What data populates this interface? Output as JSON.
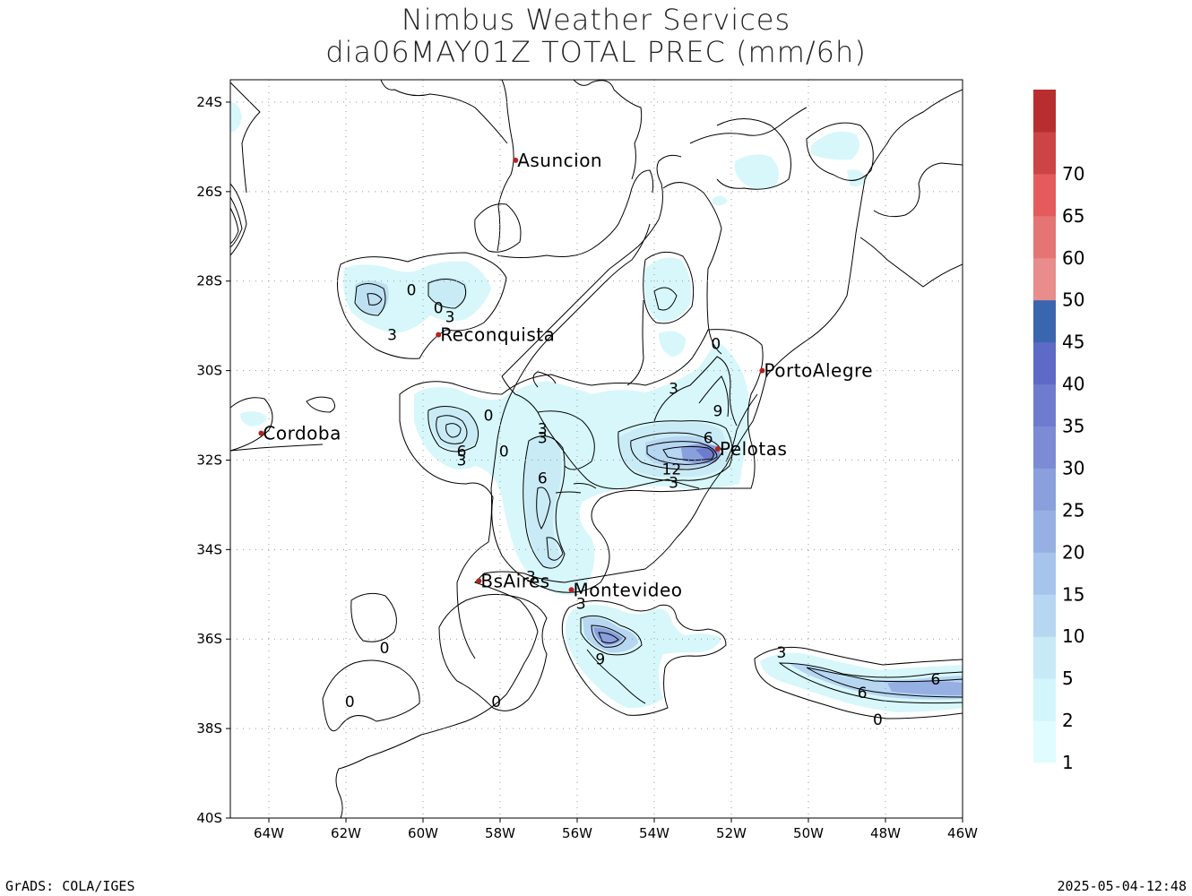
{
  "title": {
    "line1": "Nimbus Weather Services",
    "line2": "dia06MAY01Z TOTAL PREC (mm/6h)"
  },
  "footer": {
    "left": "GrADS: COLA/IGES",
    "right": "2025-05-04-12:48"
  },
  "axes": {
    "lon_range": [
      -65,
      -46
    ],
    "lat_range": [
      -40,
      -23.5
    ],
    "x_ticks": [
      {
        "v": -64,
        "label": "64W"
      },
      {
        "v": -62,
        "label": "62W"
      },
      {
        "v": -60,
        "label": "60W"
      },
      {
        "v": -58,
        "label": "58W"
      },
      {
        "v": -56,
        "label": "56W"
      },
      {
        "v": -54,
        "label": "54W"
      },
      {
        "v": -52,
        "label": "52W"
      },
      {
        "v": -50,
        "label": "50W"
      },
      {
        "v": -48,
        "label": "48W"
      },
      {
        "v": -46,
        "label": "46W"
      }
    ],
    "y_ticks": [
      {
        "v": -24,
        "label": "24S"
      },
      {
        "v": -26,
        "label": "26S"
      },
      {
        "v": -28,
        "label": "28S"
      },
      {
        "v": -30,
        "label": "30S"
      },
      {
        "v": -32,
        "label": "32S"
      },
      {
        "v": -34,
        "label": "34S"
      },
      {
        "v": -36,
        "label": "36S"
      },
      {
        "v": -38,
        "label": "38S"
      },
      {
        "v": -40,
        "label": "40S"
      }
    ]
  },
  "cities": [
    {
      "name": "Asuncion",
      "lon": -57.6,
      "lat": -25.3
    },
    {
      "name": "Reconquista",
      "lon": -59.6,
      "lat": -29.2
    },
    {
      "name": "Cordoba",
      "lon": -64.2,
      "lat": -31.4
    },
    {
      "name": "PortoAlegre",
      "lon": -51.2,
      "lat": -30.0
    },
    {
      "name": "Pelotas",
      "lon": -52.35,
      "lat": -31.75
    },
    {
      "name": "BsAires",
      "lon": -58.55,
      "lat": -34.7
    },
    {
      "name": "Montevideo",
      "lon": -56.15,
      "lat": -34.9
    }
  ],
  "contour_labels": [
    {
      "text": "0",
      "lon": -60.3,
      "lat": -28.2
    },
    {
      "text": "0",
      "lon": -59.6,
      "lat": -28.6
    },
    {
      "text": "3",
      "lon": -59.3,
      "lat": -28.8
    },
    {
      "text": "3",
      "lon": -60.8,
      "lat": -29.2
    },
    {
      "text": "0",
      "lon": -52.4,
      "lat": -29.4
    },
    {
      "text": "3",
      "lon": -53.5,
      "lat": -30.4
    },
    {
      "text": "9",
      "lon": -52.35,
      "lat": -30.9
    },
    {
      "text": "6",
      "lon": -52.6,
      "lat": -31.5
    },
    {
      "text": "12",
      "lon": -53.55,
      "lat": -32.2
    },
    {
      "text": "3",
      "lon": -53.5,
      "lat": -32.5
    },
    {
      "text": "0",
      "lon": -58.3,
      "lat": -31.0
    },
    {
      "text": "6",
      "lon": -59.0,
      "lat": -31.8
    },
    {
      "text": "3",
      "lon": -59.0,
      "lat": -32.0
    },
    {
      "text": "0",
      "lon": -57.9,
      "lat": -31.8
    },
    {
      "text": "3",
      "lon": -56.9,
      "lat": -31.3
    },
    {
      "text": "3",
      "lon": -56.9,
      "lat": -31.5
    },
    {
      "text": "6",
      "lon": -56.9,
      "lat": -32.4
    },
    {
      "text": "3",
      "lon": -57.2,
      "lat": -34.6
    },
    {
      "text": "3",
      "lon": -55.9,
      "lat": -35.2
    },
    {
      "text": "9",
      "lon": -55.4,
      "lat": -36.45
    },
    {
      "text": "0",
      "lon": -61.0,
      "lat": -36.2
    },
    {
      "text": "0",
      "lon": -61.9,
      "lat": -37.4
    },
    {
      "text": "0",
      "lon": -58.1,
      "lat": -37.4
    },
    {
      "text": "3",
      "lon": -50.7,
      "lat": -36.3
    },
    {
      "text": "6",
      "lon": -48.6,
      "lat": -37.2
    },
    {
      "text": "6",
      "lon": -46.7,
      "lat": -36.9
    },
    {
      "text": "0",
      "lon": -48.2,
      "lat": -37.8
    }
  ],
  "colorbar": {
    "colors": [
      "#e0fcfe",
      "#d2f6fb",
      "#c8eaf6",
      "#b6d6f2",
      "#a6c4ec",
      "#97b0e3",
      "#8aa0dc",
      "#7c8cd4",
      "#6e7ccf",
      "#5d6ac6",
      "#3a66b0",
      "#e88c8c",
      "#e57474",
      "#e55b5b",
      "#cc4444",
      "#b82e2e"
    ],
    "labels": [
      "1",
      "2",
      "5",
      "10",
      "15",
      "20",
      "25",
      "30",
      "35",
      "40",
      "45",
      "50",
      "60",
      "65",
      "70"
    ]
  }
}
